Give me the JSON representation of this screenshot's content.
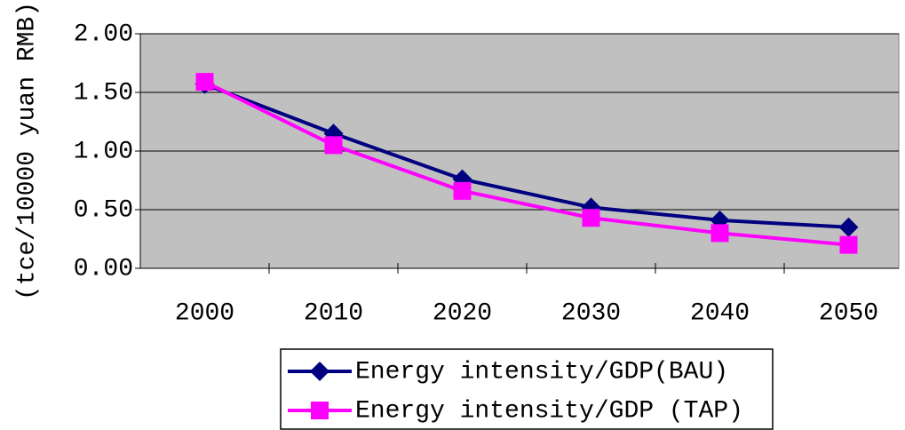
{
  "chart_data": {
    "type": "line",
    "y_label": "(tce/10000 yuan RMB)",
    "categories": [
      "2000",
      "2010",
      "2020",
      "2030",
      "2040",
      "2050"
    ],
    "series": [
      {
        "name": "Energy intensity/GDP(BAU)",
        "color": "#000080",
        "marker": "diamond",
        "values": [
          1.57,
          1.15,
          0.76,
          0.52,
          0.41,
          0.35
        ]
      },
      {
        "name": "Energy intensity/GDP (TAP)",
        "color": "#ff00ff",
        "marker": "square",
        "values": [
          1.59,
          1.05,
          0.66,
          0.43,
          0.3,
          0.2
        ]
      }
    ],
    "ylim": [
      0,
      2
    ],
    "yticks": [
      {
        "value": 0,
        "label": "0.00"
      },
      {
        "value": 0.5,
        "label": "0.50"
      },
      {
        "value": 1,
        "label": "1.00"
      },
      {
        "value": 1.5,
        "label": "1.50"
      },
      {
        "value": 2,
        "label": "2.00"
      }
    ],
    "grid": true,
    "plot_background": "#c0c0c0",
    "legend": "bottom"
  }
}
